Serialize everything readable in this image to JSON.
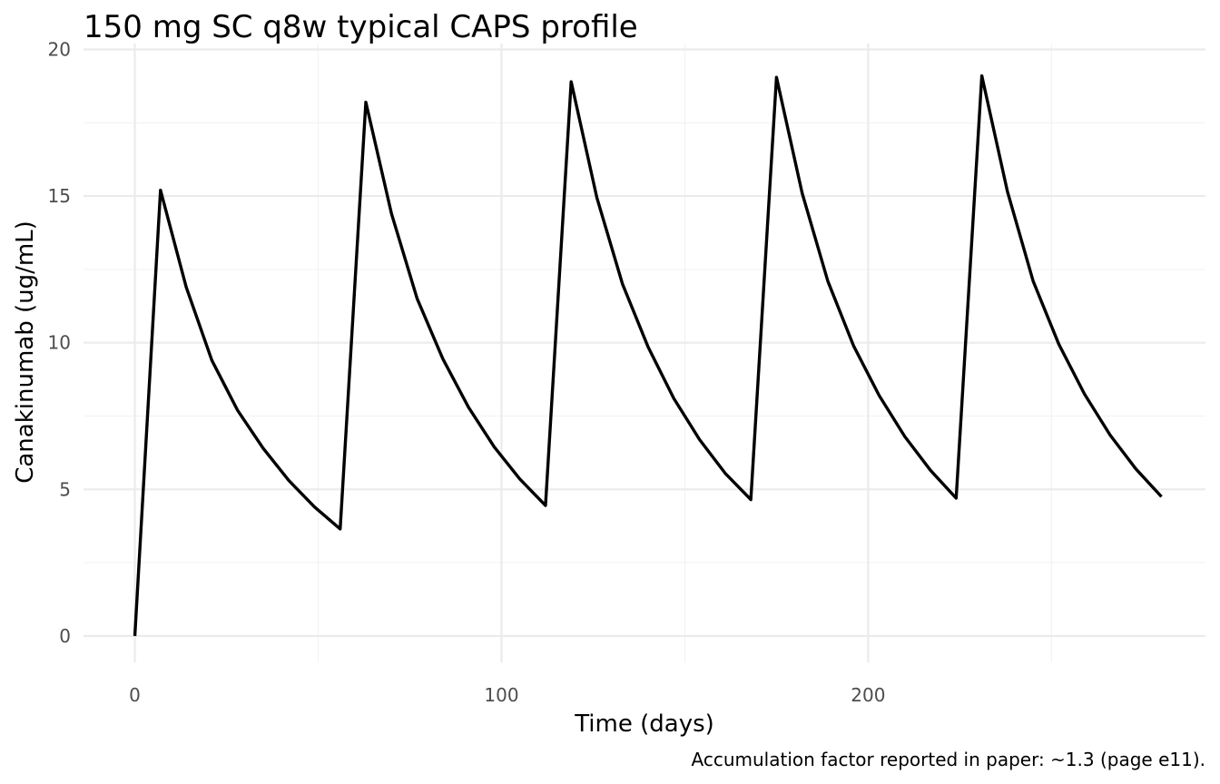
{
  "chart_data": {
    "type": "line",
    "title": "150 mg SC q8w typical CAPS profile",
    "xlabel": "Time (days)",
    "ylabel": "Canakinumab (ug/mL)",
    "caption": "Accumulation factor reported in paper: ~1.3 (page e11).",
    "xlim": [
      -14,
      292
    ],
    "ylim": [
      -0.9,
      20.2
    ],
    "x_ticks": [
      0,
      100,
      200
    ],
    "x_tick_labels": [
      "0",
      "100",
      "200"
    ],
    "x_minor_ticks": [
      50,
      150,
      250
    ],
    "y_ticks": [
      0,
      5,
      10,
      15,
      20
    ],
    "y_tick_labels": [
      "0",
      "5",
      "10",
      "15",
      "20"
    ],
    "y_minor_ticks": [
      2.5,
      7.5,
      12.5,
      17.5
    ],
    "grid": true,
    "series": [
      {
        "color": "#000000",
        "x": [
          0,
          7,
          14,
          21,
          28,
          35,
          42,
          49,
          56,
          63,
          70,
          77,
          84,
          91,
          98,
          105,
          112,
          119,
          126,
          133,
          140,
          147,
          154,
          161,
          168,
          175,
          182,
          189,
          196,
          203,
          210,
          217,
          224,
          231,
          238,
          245,
          252,
          259,
          266,
          273,
          280
        ],
        "y": [
          0,
          15.2,
          11.9,
          9.4,
          7.7,
          6.4,
          5.3,
          4.4,
          3.65,
          18.2,
          14.4,
          11.5,
          9.45,
          7.8,
          6.45,
          5.35,
          4.45,
          18.9,
          14.95,
          12.0,
          9.85,
          8.1,
          6.7,
          5.55,
          4.65,
          19.05,
          15.1,
          12.1,
          9.9,
          8.2,
          6.8,
          5.65,
          4.7,
          19.1,
          15.15,
          12.1,
          9.95,
          8.25,
          6.85,
          5.7,
          4.75
        ]
      }
    ]
  }
}
